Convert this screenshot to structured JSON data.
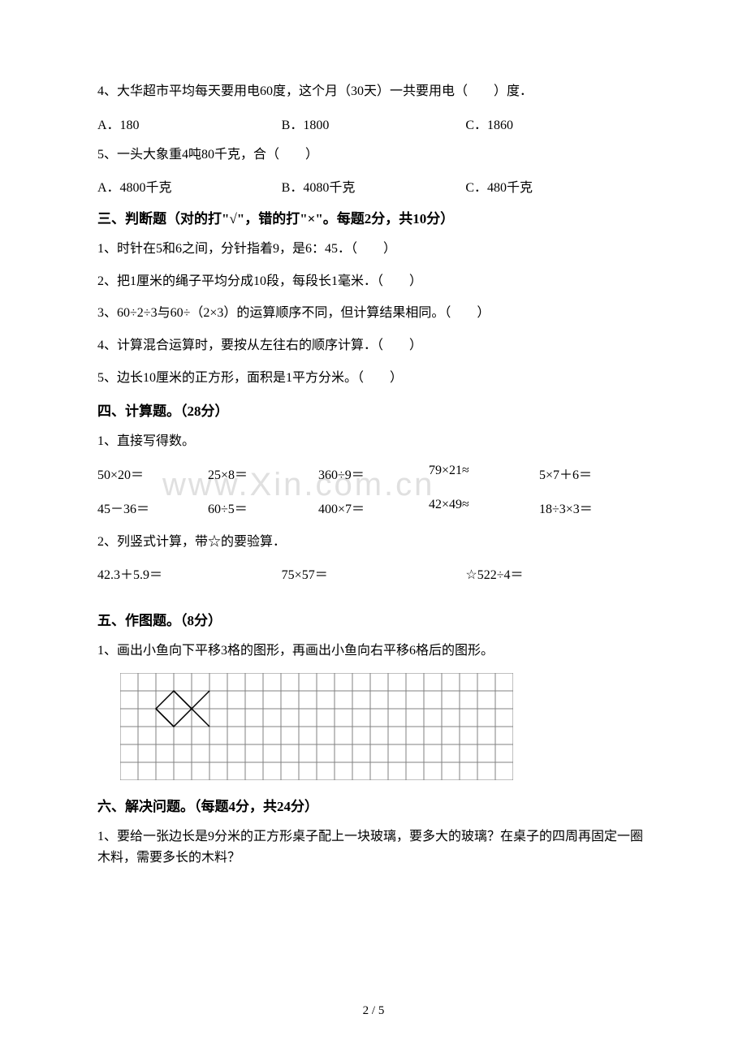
{
  "text_color": "#000000",
  "bg_color": "#ffffff",
  "watermark_color": "#e0e0e0",
  "grid_line_color": "#808080",
  "fish_line_color": "#000000",
  "watermark": "www.Xin.com.cn",
  "q4": {
    "stem": "4、大华超市平均每天要用电60度，这个月（30天）一共要用电（　　）度．",
    "a": "A．180",
    "b": "B．1800",
    "c": "C．1860"
  },
  "q5": {
    "stem": "5、一头大象重4吨80千克，合（　　）",
    "a": "A．4800千克",
    "b": "B．4080千克",
    "c": "C．480千克"
  },
  "s3": {
    "heading": "三、判断题（对的打\"√\"，错的打\"×\"。每题2分，共10分）",
    "i1": "1、时针在5和6之间，分针指着9，是6：45．（　　）",
    "i2": "2、把1厘米的绳子平均分成10段，每段长1毫米．（　　）",
    "i3": "3、60÷2÷3与60÷（2×3）的运算顺序不同，但计算结果相同。（　　）",
    "i4": "4、计算混合运算时，要按从左往右的顺序计算．（　　）",
    "i5": "5、边长10厘米的正方形，面积是1平方分米。（　　）"
  },
  "s4": {
    "heading": "四、计算题。（28分）",
    "p1": "1、直接写得数。",
    "r1": {
      "c1": "50×20＝",
      "c2": "25×8＝",
      "c3": "360÷9＝",
      "c4": "79×21≈",
      "c5": "5×7＋6＝"
    },
    "r2": {
      "c1": "45－36＝",
      "c2": "60÷5＝",
      "c3": "400×7＝",
      "c4": "42×49≈",
      "c5": "18÷3×3＝"
    },
    "p2": "2、列竖式计算，带☆的要验算．",
    "r3": {
      "c1": "42.3＋5.9＝",
      "c2": "75×57＝",
      "c3": "☆522÷4＝"
    }
  },
  "s5": {
    "heading": "五、作图题。（8分）",
    "p1": "1、画出小鱼向下平移3格的图形，再画出小鱼向右平移6格后的图形。"
  },
  "s6": {
    "heading": "六、解决问题。（每题4分，共24分）",
    "p1": "1、要给一张边长是9分米的正方形桌子配上一块玻璃，要多大的玻璃？在桌子的四周再固定一圈木料，需要多长的木料？"
  },
  "grid": {
    "cols": 22,
    "rows": 6,
    "cell": 22,
    "fish": {
      "paths": [
        "M 44 44 L 66 22 L 88 44 L 66 66 Z",
        "M 44 44 L 66 66",
        "M 66 22 L 88 44",
        "M 88 44 L 110 22",
        "M 88 44 L 110 66"
      ]
    }
  },
  "page": "2 / 5"
}
